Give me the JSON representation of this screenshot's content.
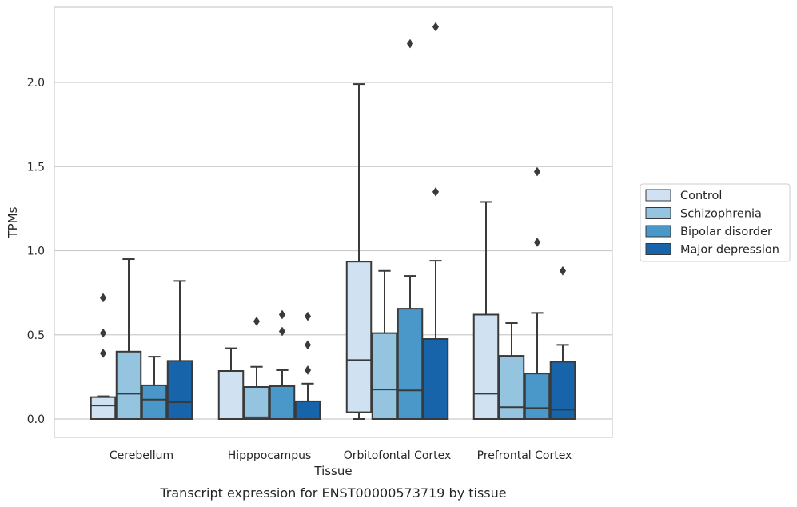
{
  "chart_data": {
    "type": "box",
    "xlabel": "Tissue",
    "ylabel": "TPMs",
    "caption": "Transcript expression for ENST00000573719 by tissue",
    "ylim": [
      -0.11,
      2.45
    ],
    "yticks": [
      0.0,
      0.5,
      1.0,
      1.5,
      2.0
    ],
    "ytick_labels": [
      "0.0",
      "0.5",
      "1.0",
      "1.5",
      "2.0"
    ],
    "grid": "horizontal",
    "legend_position": "right",
    "categories": [
      "Cerebellum",
      "Hipppocampus",
      "Orbitofontal Cortex",
      "Prefrontal Cortex"
    ],
    "series": [
      {
        "name": "Control",
        "color": "#d0e1f2",
        "boxes": [
          {
            "q1": 0.0,
            "median": 0.08,
            "q3": 0.13,
            "whisker_low": 0.0,
            "whisker_high": 0.135,
            "outliers": [
              0.39,
              0.51,
              0.72
            ]
          },
          {
            "q1": 0.0,
            "median": 0.0,
            "q3": 0.285,
            "whisker_low": 0.0,
            "whisker_high": 0.42,
            "outliers": []
          },
          {
            "q1": 0.04,
            "median": 0.35,
            "q3": 0.935,
            "whisker_low": 0.0,
            "whisker_high": 1.99,
            "outliers": []
          },
          {
            "q1": 0.0,
            "median": 0.15,
            "q3": 0.62,
            "whisker_low": 0.0,
            "whisker_high": 1.29,
            "outliers": []
          }
        ]
      },
      {
        "name": "Schizophrenia",
        "color": "#94c4df",
        "boxes": [
          {
            "q1": 0.0,
            "median": 0.15,
            "q3": 0.4,
            "whisker_low": 0.0,
            "whisker_high": 0.95,
            "outliers": []
          },
          {
            "q1": 0.0,
            "median": 0.01,
            "q3": 0.19,
            "whisker_low": 0.0,
            "whisker_high": 0.31,
            "outliers": [
              0.58
            ]
          },
          {
            "q1": 0.0,
            "median": 0.175,
            "q3": 0.51,
            "whisker_low": 0.0,
            "whisker_high": 0.88,
            "outliers": []
          },
          {
            "q1": 0.0,
            "median": 0.07,
            "q3": 0.375,
            "whisker_low": 0.0,
            "whisker_high": 0.57,
            "outliers": []
          }
        ]
      },
      {
        "name": "Bipolar disorder",
        "color": "#4a98c9",
        "boxes": [
          {
            "q1": 0.0,
            "median": 0.115,
            "q3": 0.2,
            "whisker_low": 0.0,
            "whisker_high": 0.37,
            "outliers": []
          },
          {
            "q1": 0.0,
            "median": 0.0,
            "q3": 0.195,
            "whisker_low": 0.0,
            "whisker_high": 0.29,
            "outliers": [
              0.52,
              0.62
            ]
          },
          {
            "q1": 0.0,
            "median": 0.17,
            "q3": 0.655,
            "whisker_low": 0.0,
            "whisker_high": 0.85,
            "outliers": [
              2.23
            ]
          },
          {
            "q1": 0.0,
            "median": 0.065,
            "q3": 0.27,
            "whisker_low": 0.0,
            "whisker_high": 0.63,
            "outliers": [
              1.05,
              1.47
            ]
          }
        ]
      },
      {
        "name": "Major depression",
        "color": "#1764ab",
        "boxes": [
          {
            "q1": 0.0,
            "median": 0.1,
            "q3": 0.345,
            "whisker_low": 0.0,
            "whisker_high": 0.82,
            "outliers": []
          },
          {
            "q1": 0.0,
            "median": 0.0,
            "q3": 0.105,
            "whisker_low": 0.0,
            "whisker_high": 0.21,
            "outliers": [
              0.29,
              0.44,
              0.61
            ]
          },
          {
            "q1": 0.0,
            "median": 0.0,
            "q3": 0.475,
            "whisker_low": 0.0,
            "whisker_high": 0.94,
            "outliers": [
              1.35,
              2.33
            ]
          },
          {
            "q1": 0.0,
            "median": 0.055,
            "q3": 0.34,
            "whisker_low": 0.0,
            "whisker_high": 0.44,
            "outliers": [
              0.88
            ]
          }
        ]
      }
    ]
  }
}
